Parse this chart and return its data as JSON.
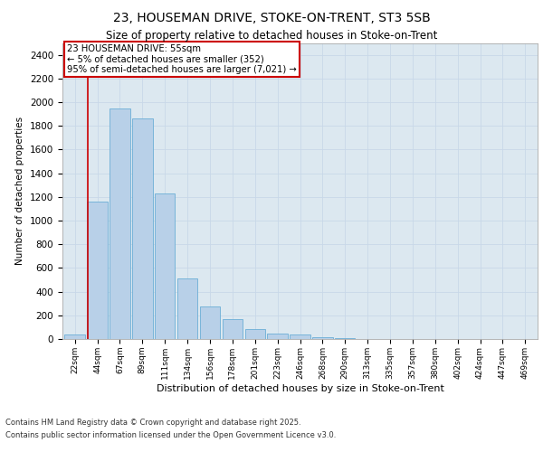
{
  "title1": "23, HOUSEMAN DRIVE, STOKE-ON-TRENT, ST3 5SB",
  "title2": "Size of property relative to detached houses in Stoke-on-Trent",
  "xlabel": "Distribution of detached houses by size in Stoke-on-Trent",
  "ylabel": "Number of detached properties",
  "categories": [
    "22sqm",
    "44sqm",
    "67sqm",
    "89sqm",
    "111sqm",
    "134sqm",
    "156sqm",
    "178sqm",
    "201sqm",
    "223sqm",
    "246sqm",
    "268sqm",
    "290sqm",
    "313sqm",
    "335sqm",
    "357sqm",
    "380sqm",
    "402sqm",
    "424sqm",
    "447sqm",
    "469sqm"
  ],
  "values": [
    35,
    1160,
    1950,
    1860,
    1230,
    510,
    275,
    165,
    85,
    45,
    35,
    15,
    5,
    0,
    0,
    0,
    0,
    0,
    0,
    0,
    0
  ],
  "bar_color": "#b8d0e8",
  "bar_edge_color": "#6baed6",
  "vline_color": "#cc0000",
  "vline_x": 0.575,
  "annotation_text": "23 HOUSEMAN DRIVE: 55sqm\n← 5% of detached houses are smaller (352)\n95% of semi-detached houses are larger (7,021) →",
  "annotation_box_color": "#ffffff",
  "annotation_box_edge": "#cc0000",
  "ylim": [
    0,
    2500
  ],
  "yticks": [
    0,
    200,
    400,
    600,
    800,
    1000,
    1200,
    1400,
    1600,
    1800,
    2000,
    2200,
    2400
  ],
  "grid_color": "#c8d8e8",
  "background_color": "#dce8f0",
  "footer1": "Contains HM Land Registry data © Crown copyright and database right 2025.",
  "footer2": "Contains public sector information licensed under the Open Government Licence v3.0."
}
